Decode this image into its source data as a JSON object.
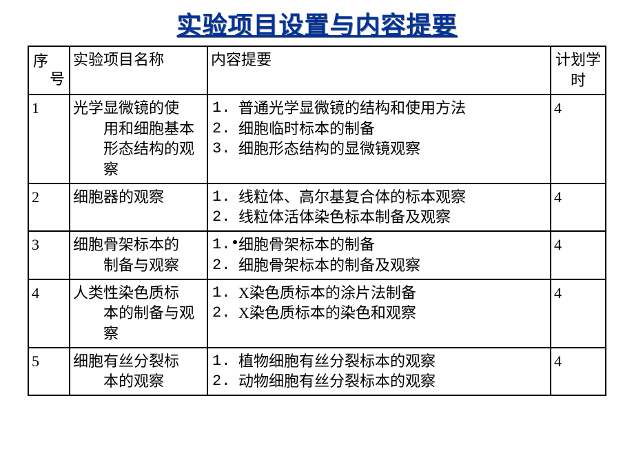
{
  "title": "实验项目设置与内容提要",
  "columns": {
    "seq_char1": "序",
    "seq_char2": "号",
    "name": "实验项目名称",
    "summary": "内容提要",
    "hours": "计划学时"
  },
  "rows": [
    {
      "seq": "1",
      "name_first": "光学显微镜的使",
      "name_rest": [
        "用和细胞基本",
        "形态结构的观",
        "察"
      ],
      "summary": [
        "普通光学显微镜的结构和使用方法",
        "细胞临时标本的制备",
        "细胞形态结构的显微镜观察"
      ],
      "hours": "4"
    },
    {
      "seq": "2",
      "name_first": "细胞器的观察",
      "name_rest": [],
      "summary": [
        "线粒体、高尔基复合体的标本观察",
        "线粒体活体染色标本制备及观察"
      ],
      "hours": "4"
    },
    {
      "seq": "3",
      "name_first": "细胞骨架标本的",
      "name_rest": [
        "制备与观察"
      ],
      "summary": [
        "细胞骨架标本的制备",
        "细胞骨架标本的制备及观察"
      ],
      "hours": "4"
    },
    {
      "seq": "4",
      "name_first": "人类性染色质标",
      "name_rest": [
        "本的制备与观",
        "察"
      ],
      "summary": [
        "X染色质标本的涂片法制备",
        "X染色质标本的染色和观察"
      ],
      "hours": "4"
    },
    {
      "seq": "5",
      "name_first": "细胞有丝分裂标",
      "name_rest": [
        "本的观察"
      ],
      "summary": [
        "植物细胞有丝分裂标本的观察",
        "动物细胞有丝分裂标本的观察"
      ],
      "hours": "4"
    }
  ],
  "style": {
    "page_bg": "#ffffff",
    "title_color": "#003399",
    "title_shadow": "#888888",
    "border_color": "#000000",
    "text_color": "#000000",
    "title_fontsize": 36,
    "cell_fontsize": 22
  }
}
